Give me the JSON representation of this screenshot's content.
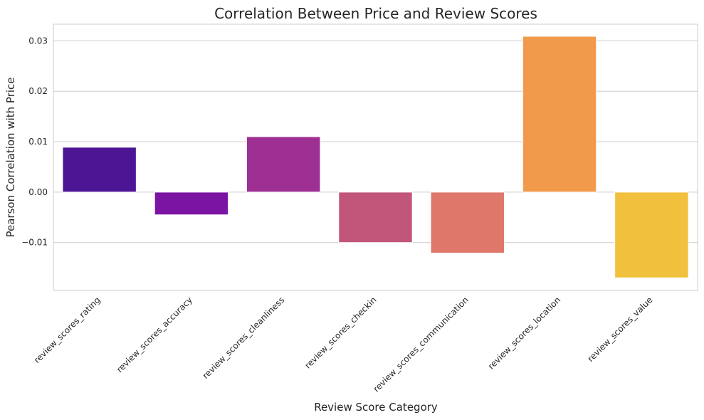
{
  "chart_data": {
    "type": "bar",
    "title": "Correlation Between Price and Review Scores",
    "xlabel": "Review Score Category",
    "ylabel": "Pearson Correlation with Price",
    "categories": [
      "review_scores_rating",
      "review_scores_accuracy",
      "review_scores_cleanliness",
      "review_scores_checkin",
      "review_scores_communication",
      "review_scores_location",
      "review_scores_value"
    ],
    "values": [
      0.0089,
      -0.0045,
      0.011,
      -0.01,
      -0.0121,
      0.0309,
      -0.017
    ],
    "colors": [
      "#4c1594",
      "#7b14a3",
      "#9e3093",
      "#c2567a",
      "#e0776b",
      "#f29a4c",
      "#f1c03c"
    ],
    "ylim": [
      -0.0195,
      0.0333
    ],
    "yticks": [
      -0.01,
      0.0,
      0.01,
      0.02,
      0.03
    ],
    "ytick_labels": [
      "−0.01",
      "0.00",
      "0.01",
      "0.02",
      "0.03"
    ],
    "grid": "horizontal",
    "legend": "none"
  }
}
